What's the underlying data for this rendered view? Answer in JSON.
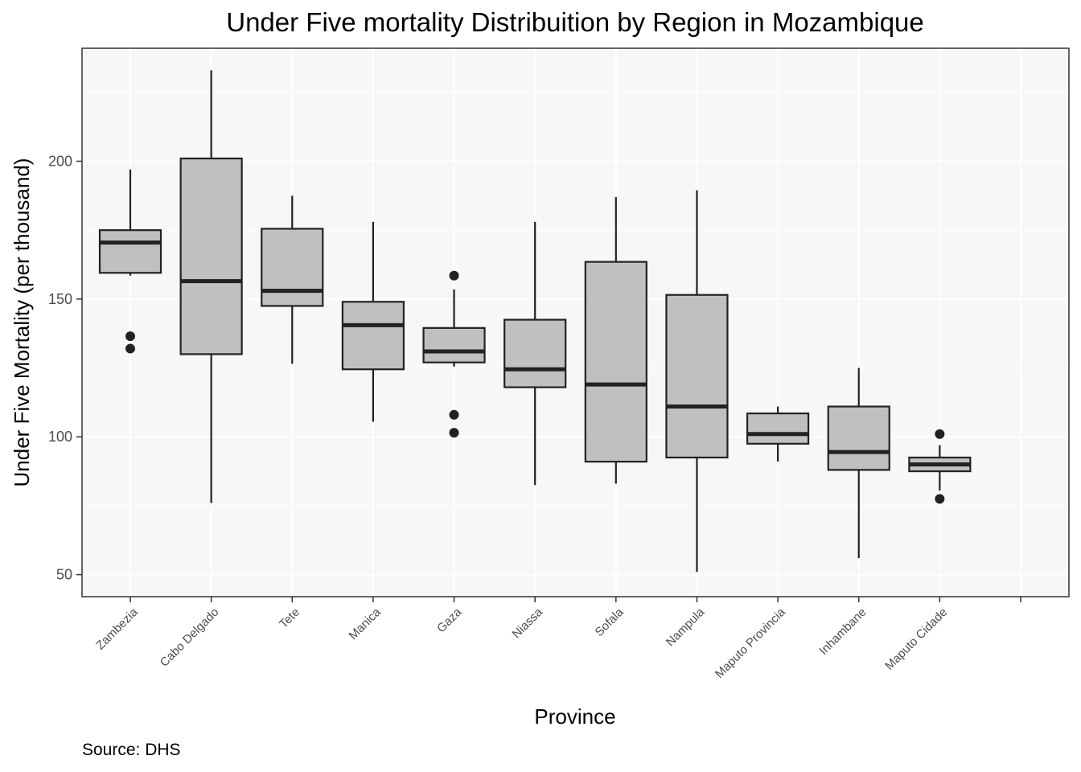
{
  "chart_data": {
    "type": "boxplot",
    "title": "Under Five mortality Distribuition by Region in Mozambique",
    "xlabel": "Province",
    "ylabel": "Under Five Mortality (per thousand)",
    "caption": "Source: DHS",
    "ylim": [
      42,
      241
    ],
    "yticks": [
      50,
      100,
      150,
      200
    ],
    "grid": true,
    "legend": "none",
    "colors": {
      "box_fill": "#c0c0c0",
      "stroke": "#222222",
      "panel": "#f7f7f7",
      "grid": "#ffffff",
      "border": "#333333"
    },
    "categories": [
      "Zambezia",
      "Cabo Delgado",
      "Tete",
      "Manica",
      "Gaza",
      "Niassa",
      "Sofala",
      "Nampula",
      "Maputo Provincia",
      "Inhambane",
      "Maputo Cidade",
      ""
    ],
    "series": [
      {
        "category": "Zambezia",
        "lower_whisker": 158.5,
        "q1": 159.5,
        "median": 170.5,
        "q3": 175,
        "upper_whisker": 197,
        "outliers": [
          136.5,
          132
        ]
      },
      {
        "category": "Cabo Delgado",
        "lower_whisker": 76,
        "q1": 130,
        "median": 156.5,
        "q3": 201,
        "upper_whisker": 233,
        "outliers": []
      },
      {
        "category": "Tete",
        "lower_whisker": 126.5,
        "q1": 147.5,
        "median": 153,
        "q3": 175.5,
        "upper_whisker": 187.5,
        "outliers": []
      },
      {
        "category": "Manica",
        "lower_whisker": 105.5,
        "q1": 124.5,
        "median": 140.5,
        "q3": 149,
        "upper_whisker": 178,
        "outliers": []
      },
      {
        "category": "Gaza",
        "lower_whisker": 125.5,
        "q1": 127,
        "median": 131,
        "q3": 139.5,
        "upper_whisker": 153.5,
        "outliers": [
          158.5,
          108,
          101.5
        ]
      },
      {
        "category": "Niassa",
        "lower_whisker": 82.5,
        "q1": 118,
        "median": 124.5,
        "q3": 142.5,
        "upper_whisker": 178,
        "outliers": []
      },
      {
        "category": "Sofala",
        "lower_whisker": 83,
        "q1": 91,
        "median": 119,
        "q3": 163.5,
        "upper_whisker": 187,
        "outliers": []
      },
      {
        "category": "Nampula",
        "lower_whisker": 51,
        "q1": 92.5,
        "median": 111,
        "q3": 151.5,
        "upper_whisker": 189.5,
        "outliers": []
      },
      {
        "category": "Maputo Provincia",
        "lower_whisker": 91,
        "q1": 97.5,
        "median": 101,
        "q3": 108.5,
        "upper_whisker": 111,
        "outliers": []
      },
      {
        "category": "Inhambane",
        "lower_whisker": 56,
        "q1": 88,
        "median": 94.5,
        "q3": 111,
        "upper_whisker": 125,
        "outliers": []
      },
      {
        "category": "Maputo Cidade",
        "lower_whisker": 80.5,
        "q1": 87.5,
        "median": 90,
        "q3": 92.5,
        "upper_whisker": 97,
        "outliers": [
          101,
          77.5
        ]
      }
    ]
  }
}
